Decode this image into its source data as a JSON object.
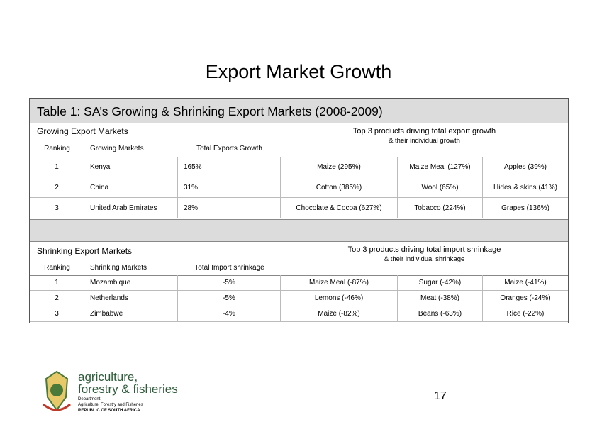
{
  "title": "Export Market Growth",
  "table": {
    "caption": "Table 1: SA’s Growing & Shrinking Export Markets (2008-2009)",
    "growing": {
      "section": "Growing Export Markets",
      "products_header": "Top 3 products driving total export growth",
      "products_subheader": "& their individual growth",
      "headers": [
        "Ranking",
        "Growing Markets",
        "Total Exports Growth"
      ],
      "rows": [
        [
          "1",
          "Kenya",
          "165%",
          "Maize (295%)",
          "Maize Meal (127%)",
          "Apples (39%)"
        ],
        [
          "2",
          "China",
          "31%",
          "Cotton (385%)",
          "Wool (65%)",
          "Hides & skins (41%)"
        ],
        [
          "3",
          "United Arab Emirates",
          "28%",
          "Chocolate & Cocoa (627%)",
          "Tobacco (224%)",
          "Grapes (136%)"
        ]
      ]
    },
    "shrinking": {
      "section": "Shrinking Export Markets",
      "products_header": "Top 3 products driving total import shrinkage",
      "products_subheader": "& their individual shrinkage",
      "headers": [
        "Ranking",
        "Shrinking Markets",
        "Total Import shrinkage"
      ],
      "rows": [
        [
          "1",
          "Mozambique",
          "-5%",
          "Maize Meal (-87%)",
          "Sugar (-42%)",
          "Maize (-41%)"
        ],
        [
          "2",
          "Netherlands",
          "-5%",
          "Lemons (-46%)",
          "Meat (-38%)",
          "Oranges (-24%)"
        ],
        [
          "3",
          "Zimbabwe",
          "-4%",
          "Maize (-82%)",
          "Beans (-63%)",
          "Rice (-22%)"
        ]
      ]
    }
  },
  "logo": {
    "line1": "agriculture,",
    "line2": "forestry & fisheries",
    "dept": "Department:",
    "dept_name": "Agriculture, Forestry and Fisheries",
    "country": "REPUBLIC OF SOUTH AFRICA"
  },
  "page_number": "17"
}
